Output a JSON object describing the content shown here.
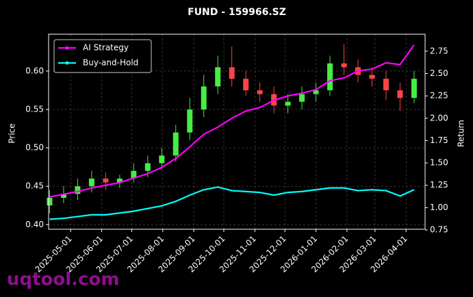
{
  "chart_data": {
    "type": "candlestick",
    "title": "FUND - 159966.SZ",
    "ylabel": "Price",
    "y2label": "Return",
    "watermark": "uqtool.com",
    "x": [
      "2025-04-10",
      "2025-04-24",
      "2025-05-08",
      "2025-05-22",
      "2025-06-05",
      "2025-06-19",
      "2025-07-03",
      "2025-07-17",
      "2025-07-31",
      "2025-08-14",
      "2025-08-28",
      "2025-09-11",
      "2025-09-25",
      "2025-10-09",
      "2025-10-23",
      "2025-11-06",
      "2025-11-20",
      "2025-12-04",
      "2025-12-18",
      "2026-01-01",
      "2026-01-15",
      "2026-01-29",
      "2026-02-12",
      "2026-02-26",
      "2026-03-12",
      "2026-03-26",
      "2026-04-09"
    ],
    "open": [
      0.425,
      0.435,
      0.44,
      0.45,
      0.46,
      0.455,
      0.46,
      0.47,
      0.48,
      0.49,
      0.52,
      0.55,
      0.58,
      0.605,
      0.59,
      0.575,
      0.57,
      0.555,
      0.56,
      0.57,
      0.575,
      0.61,
      0.605,
      0.595,
      0.59,
      0.575,
      0.565
    ],
    "high": [
      0.445,
      0.45,
      0.46,
      0.47,
      0.468,
      0.465,
      0.48,
      0.49,
      0.5,
      0.53,
      0.565,
      0.595,
      0.62,
      0.632,
      0.6,
      0.585,
      0.58,
      0.57,
      0.58,
      0.585,
      0.62,
      0.635,
      0.615,
      0.605,
      0.6,
      0.585,
      0.6
    ],
    "low": [
      0.415,
      0.428,
      0.432,
      0.442,
      0.445,
      0.448,
      0.455,
      0.462,
      0.472,
      0.482,
      0.51,
      0.54,
      0.57,
      0.58,
      0.568,
      0.56,
      0.545,
      0.545,
      0.55,
      0.56,
      0.568,
      0.595,
      0.585,
      0.58,
      0.562,
      0.548,
      0.558
    ],
    "close": [
      0.435,
      0.44,
      0.45,
      0.46,
      0.455,
      0.46,
      0.47,
      0.48,
      0.49,
      0.52,
      0.55,
      0.58,
      0.605,
      0.59,
      0.575,
      0.57,
      0.555,
      0.56,
      0.57,
      0.575,
      0.61,
      0.605,
      0.595,
      0.59,
      0.575,
      0.565,
      0.59
    ],
    "up_color": "#44ee44",
    "down_color": "#ff4444",
    "series": [
      {
        "name": "AI Strategy",
        "color": "#ff00ff",
        "axis": "y2",
        "values": [
          1.12,
          1.15,
          1.18,
          1.22,
          1.25,
          1.28,
          1.33,
          1.38,
          1.45,
          1.55,
          1.68,
          1.82,
          1.9,
          2.0,
          2.08,
          2.12,
          2.2,
          2.25,
          2.28,
          2.32,
          2.42,
          2.45,
          2.53,
          2.55,
          2.62,
          2.6,
          2.82
        ]
      },
      {
        "name": "Buy-and-Hold",
        "color": "#00ffff",
        "axis": "y2",
        "values": [
          0.87,
          0.88,
          0.9,
          0.92,
          0.92,
          0.94,
          0.96,
          0.99,
          1.02,
          1.07,
          1.14,
          1.2,
          1.23,
          1.19,
          1.18,
          1.17,
          1.14,
          1.17,
          1.18,
          1.2,
          1.22,
          1.22,
          1.19,
          1.2,
          1.19,
          1.13,
          1.2
        ]
      }
    ],
    "xlim": [
      "2025-04-09",
      "2026-04-20"
    ],
    "xticks": [
      "2025-05-01",
      "2025-06-01",
      "2025-07-01",
      "2025-08-01",
      "2025-09-01",
      "2025-10-01",
      "2025-11-01",
      "2025-12-01",
      "2026-01-01",
      "2026-02-01",
      "2026-03-01",
      "2026-04-01"
    ],
    "ylim": [
      0.394,
      0.648
    ],
    "yticks": [
      {
        "value": 0.4,
        "label": "0.40"
      },
      0.45,
      {
        "value": 0.5,
        "label": "0.50"
      },
      0.55,
      {
        "value": 0.6,
        "label": "0.60"
      }
    ],
    "y2lim": [
      0.758,
      2.94
    ],
    "y2ticks": [
      0.75,
      {
        "value": 1.0,
        "label": "1.00"
      },
      1.25,
      {
        "value": 1.5,
        "label": "1.50"
      },
      1.75,
      {
        "value": 2.0,
        "label": "2.00"
      },
      2.25,
      {
        "value": 2.5,
        "label": "2.50"
      },
      2.75
    ],
    "grid": true,
    "legend": "upper left"
  }
}
